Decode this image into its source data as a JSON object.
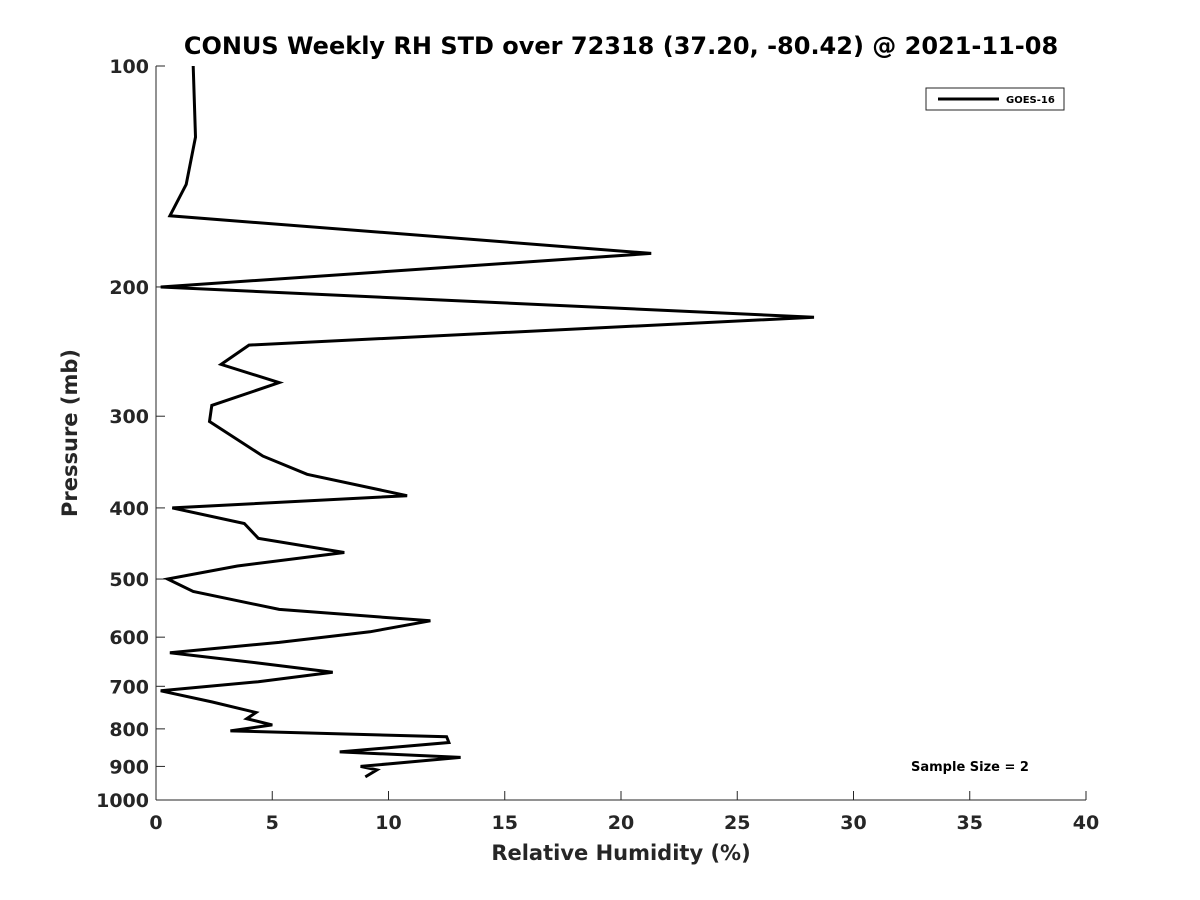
{
  "chart_data": {
    "type": "line",
    "title": "CONUS Weekly RH STD over 72318 (37.20, -80.42) @ 2021-11-08",
    "xlabel": "Relative Humidity (%)",
    "ylabel": "Pressure (mb)",
    "xlim": [
      0,
      40
    ],
    "ylim": [
      100,
      1000
    ],
    "y_scale": "log",
    "y_reversed": true,
    "xticks": [
      0,
      5,
      10,
      15,
      20,
      25,
      30,
      35,
      40
    ],
    "yticks": [
      100,
      200,
      300,
      400,
      500,
      600,
      700,
      800,
      900,
      1000
    ],
    "grid": false,
    "legend_position": "top-right",
    "annotation": "Sample Size = 2",
    "series": [
      {
        "name": "GOES-16",
        "color": "#000000",
        "x": [
          1.6,
          1.7,
          1.3,
          0.6,
          21.3,
          0.2,
          28.3,
          4.0,
          2.8,
          5.3,
          2.4,
          2.3,
          4.6,
          6.5,
          10.8,
          0.7,
          3.8,
          4.4,
          8.1,
          3.5,
          0.5,
          1.6,
          5.3,
          11.8,
          9.2,
          5.3,
          0.6,
          4.3,
          7.6,
          4.4,
          0.2,
          2.4,
          4.3,
          3.9,
          5.0,
          3.2,
          12.5,
          12.6,
          7.9,
          13.1,
          8.8,
          9.5,
          9.0
        ],
        "y": [
          100,
          125,
          145,
          160,
          180,
          200,
          220,
          240,
          255,
          270,
          290,
          305,
          340,
          360,
          385,
          400,
          420,
          440,
          460,
          480,
          500,
          520,
          550,
          570,
          590,
          610,
          630,
          650,
          670,
          690,
          710,
          735,
          760,
          775,
          790,
          805,
          820,
          835,
          860,
          875,
          900,
          910,
          930
        ]
      }
    ]
  }
}
